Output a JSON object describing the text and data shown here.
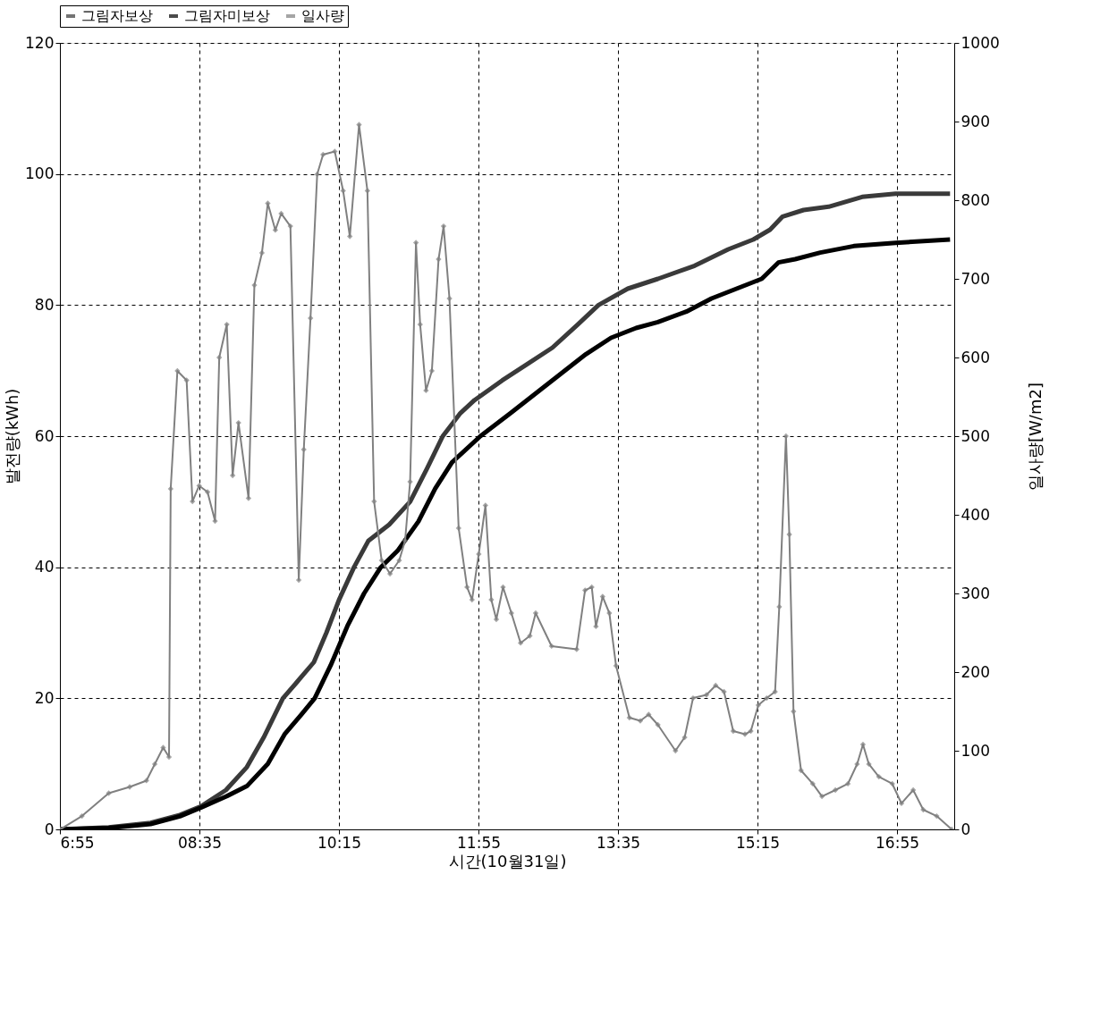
{
  "chart_data": {
    "type": "line",
    "xlabel": "시간(10월31일)",
    "ylabel": "발전량(kWh)",
    "y2label": "일사량[W/m2]",
    "xlim": [
      6.9167,
      17.6
    ],
    "xticks": [
      {
        "value": 6.9167,
        "label": "6:55"
      },
      {
        "value": 8.5833,
        "label": "08:35"
      },
      {
        "value": 10.25,
        "label": "10:15"
      },
      {
        "value": 11.9167,
        "label": "11:55"
      },
      {
        "value": 13.5833,
        "label": "13:35"
      },
      {
        "value": 15.25,
        "label": "15:15"
      },
      {
        "value": 16.9167,
        "label": "16:55"
      }
    ],
    "ylim": [
      0,
      120
    ],
    "yticks": [
      0,
      20,
      40,
      60,
      80,
      100,
      120
    ],
    "y2lim": [
      0,
      1000
    ],
    "y2ticks": [
      0,
      100,
      200,
      300,
      400,
      500,
      600,
      700,
      800,
      900,
      1000
    ],
    "grid": true,
    "legend": "top",
    "line_style": "solid",
    "series": [
      {
        "name": "그림자보상",
        "color": "#3a3a3a",
        "marker": "none",
        "x": [
          6.92,
          7.5,
          8.0,
          8.35,
          8.6,
          8.9,
          9.15,
          9.35,
          9.58,
          9.75,
          9.95,
          10.1,
          10.25,
          10.43,
          10.6,
          10.85,
          11.1,
          11.3,
          11.49,
          11.7,
          11.87,
          12.2,
          12.5,
          12.8,
          13.1,
          13.35,
          13.7,
          14.06,
          14.5,
          14.9,
          15.2,
          15.4,
          15.55,
          15.8,
          16.1,
          16.5,
          16.9,
          17.55
        ],
        "values": [
          0,
          0.3,
          1.0,
          2.2,
          3.5,
          6,
          9.5,
          14,
          20,
          22.5,
          25.5,
          30,
          35,
          40,
          44,
          46.5,
          50,
          55,
          60,
          63.5,
          65.5,
          68.5,
          71,
          73.5,
          77,
          80,
          82.5,
          84,
          86,
          88.5,
          90,
          91.5,
          93.5,
          94.5,
          95,
          96.5,
          97,
          97
        ]
      },
      {
        "name": "그림자미보상",
        "color": "#000000",
        "marker": "none",
        "x": [
          6.92,
          7.5,
          8.0,
          8.35,
          8.6,
          8.9,
          9.15,
          9.4,
          9.6,
          9.8,
          9.96,
          10.15,
          10.35,
          10.55,
          10.75,
          10.95,
          11.2,
          11.4,
          11.6,
          11.94,
          12.3,
          12.6,
          12.9,
          13.2,
          13.5,
          13.8,
          14.06,
          14.4,
          14.7,
          15.0,
          15.3,
          15.5,
          15.7,
          16.0,
          16.4,
          16.9,
          17.55
        ],
        "values": [
          0,
          0.2,
          0.8,
          2.0,
          3.3,
          5,
          6.6,
          10,
          14.5,
          17.5,
          20,
          25,
          31,
          36,
          40,
          42.5,
          47,
          52,
          56,
          60,
          63.5,
          66.5,
          69.5,
          72.5,
          75,
          76.5,
          77.4,
          79,
          81,
          82.5,
          84,
          86.5,
          87,
          88,
          89,
          89.5,
          90
        ]
      },
      {
        "name": "일사량",
        "color": "#808080",
        "marker": "diamond",
        "axis": "y2",
        "x": [
          6.92,
          7.18,
          7.5,
          7.75,
          7.95,
          8.05,
          8.15,
          8.22,
          8.24,
          8.32,
          8.43,
          8.5,
          8.58,
          8.68,
          8.77,
          8.82,
          8.91,
          8.98,
          9.05,
          9.17,
          9.24,
          9.33,
          9.4,
          9.49,
          9.56,
          9.67,
          9.77,
          9.83,
          9.91,
          9.99,
          10.06,
          10.2,
          10.3,
          10.38,
          10.49,
          10.59,
          10.67,
          10.76,
          10.86,
          10.97,
          11.04,
          11.1,
          11.17,
          11.22,
          11.29,
          11.36,
          11.44,
          11.5,
          11.57,
          11.68,
          11.78,
          11.84,
          11.92,
          12.0,
          12.07,
          12.13,
          12.21,
          12.31,
          12.42,
          12.53,
          12.6,
          12.79,
          13.09,
          13.19,
          13.27,
          13.32,
          13.4,
          13.48,
          13.56,
          13.72,
          13.85,
          13.95,
          14.06,
          14.27,
          14.38,
          14.48,
          14.64,
          14.75,
          14.85,
          14.96,
          15.1,
          15.17,
          15.26,
          15.36,
          15.46,
          15.51,
          15.59,
          15.63,
          15.68,
          15.77,
          15.91,
          16.02,
          16.18,
          16.33,
          16.44,
          16.51,
          16.58,
          16.7,
          16.86,
          16.97,
          17.11,
          17.23,
          17.39,
          17.57
        ],
        "values": [
          0,
          17,
          46,
          54,
          62,
          83,
          104,
          92,
          433,
          583,
          571,
          417,
          437,
          429,
          392,
          600,
          642,
          450,
          517,
          421,
          692,
          733,
          796,
          762,
          783,
          767,
          317,
          483,
          650,
          833,
          858,
          862,
          812,
          754,
          896,
          812,
          417,
          342,
          325,
          342,
          367,
          442,
          746,
          642,
          558,
          583,
          725,
          767,
          675,
          383,
          308,
          292,
          350,
          412,
          292,
          267,
          308,
          275,
          237,
          246,
          275,
          233,
          229,
          304,
          308,
          258,
          296,
          275,
          208,
          142,
          138,
          146,
          133,
          100,
          117,
          167,
          171,
          183,
          175,
          125,
          121,
          125,
          158,
          167,
          175,
          283,
          500,
          375,
          150,
          75,
          58,
          42,
          50,
          58,
          83,
          108,
          83,
          67,
          58,
          33,
          50,
          25,
          17,
          0
        ]
      }
    ]
  }
}
